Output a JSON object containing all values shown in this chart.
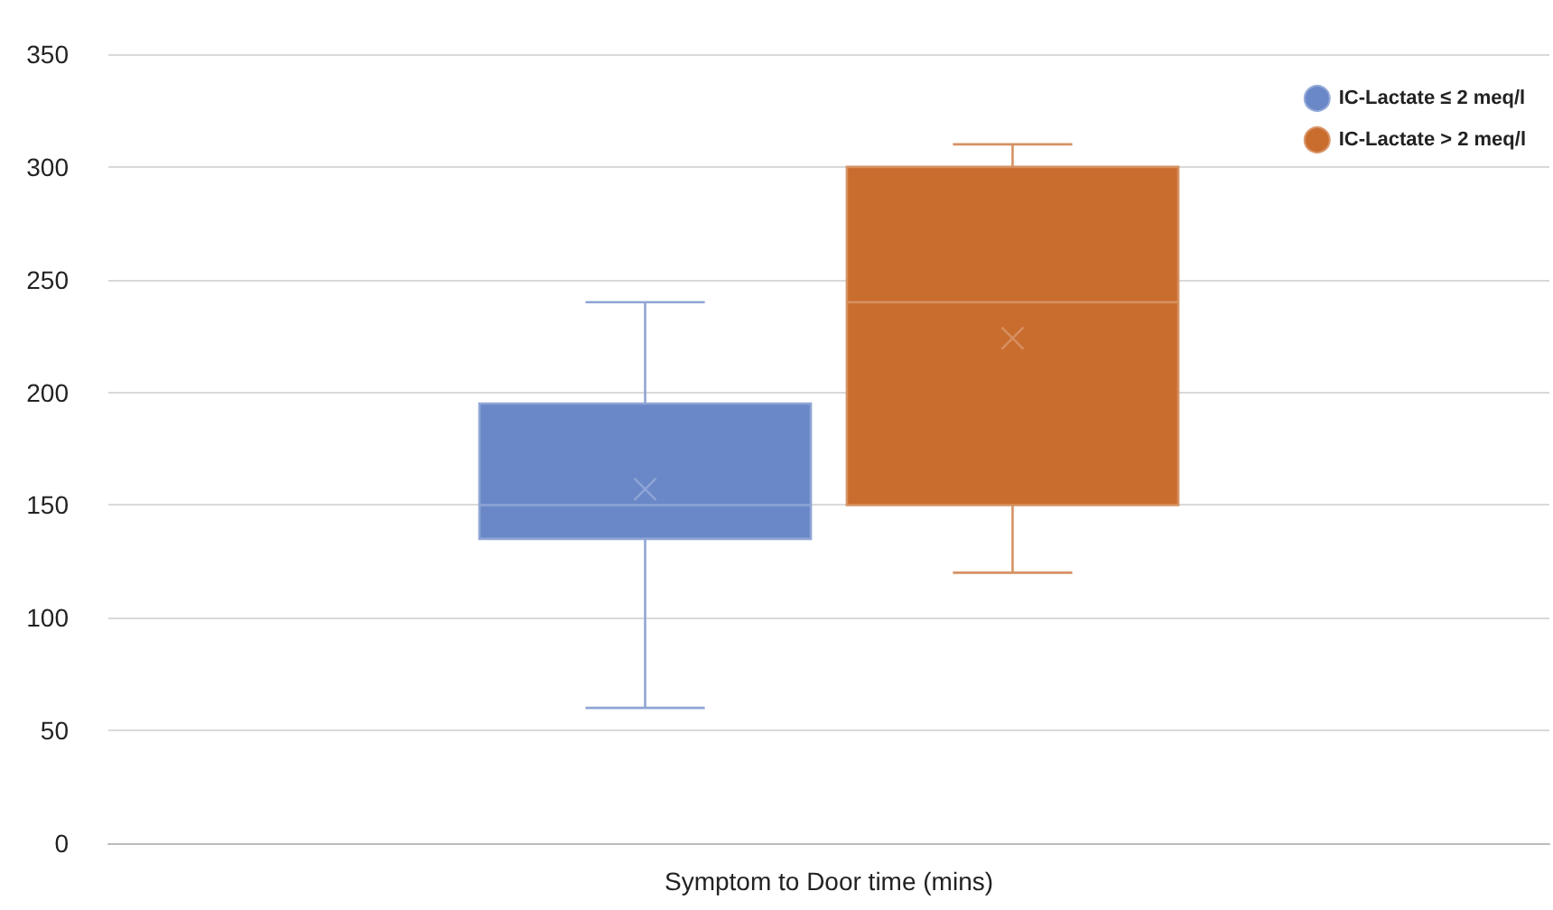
{
  "chart_data": {
    "type": "box",
    "categories": [
      "Symptom to Door time (mins)"
    ],
    "series": [
      {
        "name": "IC-Lactate ≤ 2 meq/l",
        "color": "#6a88c8",
        "boxes": [
          {
            "low": 60,
            "q1": 135,
            "median": 150,
            "q3": 195,
            "high": 240,
            "mean": 157
          }
        ]
      },
      {
        "name": "IC-Lactate > 2 meq/l",
        "color": "#c96d2f",
        "boxes": [
          {
            "low": 120,
            "q1": 150,
            "median": 240,
            "q3": 300,
            "high": 310,
            "mean": 224
          }
        ]
      }
    ],
    "ylim": [
      0,
      350
    ],
    "yticks": [
      0,
      50,
      100,
      150,
      200,
      250,
      300,
      350
    ],
    "grid": "y",
    "legend": "top right",
    "marker": "cross"
  }
}
